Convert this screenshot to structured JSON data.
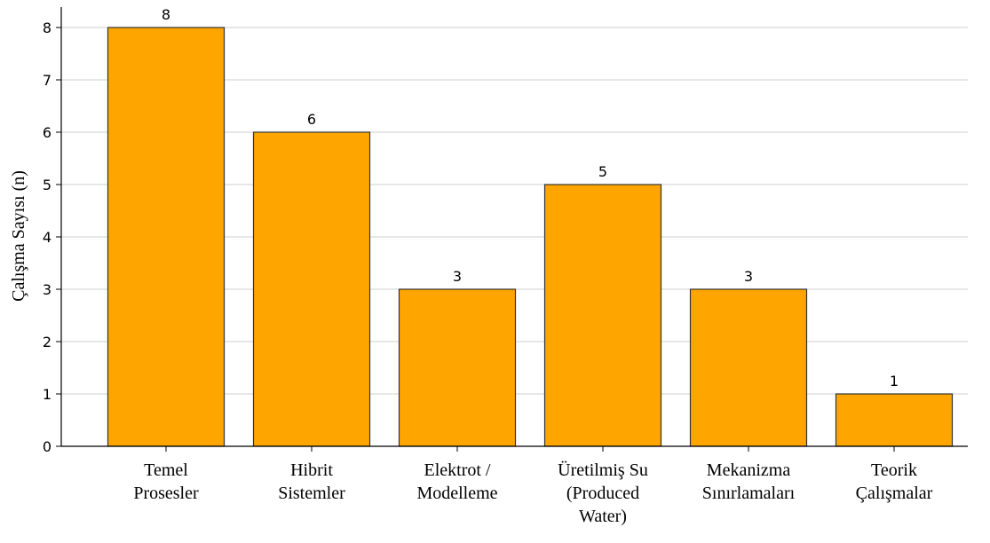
{
  "chart_data": {
    "type": "bar",
    "title": "",
    "xlabel": "",
    "ylabel": "Çalışma Sayısı (n)",
    "ylim": [
      0,
      8.4
    ],
    "yticks": [
      0,
      1,
      2,
      3,
      4,
      5,
      6,
      7,
      8
    ],
    "grid": "horizontal",
    "bar_color": "#FFA500",
    "edge_color": "#333333",
    "categories": [
      [
        "Temel",
        "Prosesler"
      ],
      [
        "Hibrit",
        "Sistemler"
      ],
      [
        "Elektrot /",
        "Modelleme"
      ],
      [
        "Üretilmiş Su",
        "(Produced",
        "Water)"
      ],
      [
        "Mekanizma",
        "Sınırlamaları"
      ],
      [
        "Teorik",
        "Çalışmalar"
      ]
    ],
    "values": [
      8,
      6,
      3,
      5,
      3,
      1
    ],
    "data_labels": [
      "8",
      "6",
      "3",
      "5",
      "3",
      "1"
    ]
  }
}
